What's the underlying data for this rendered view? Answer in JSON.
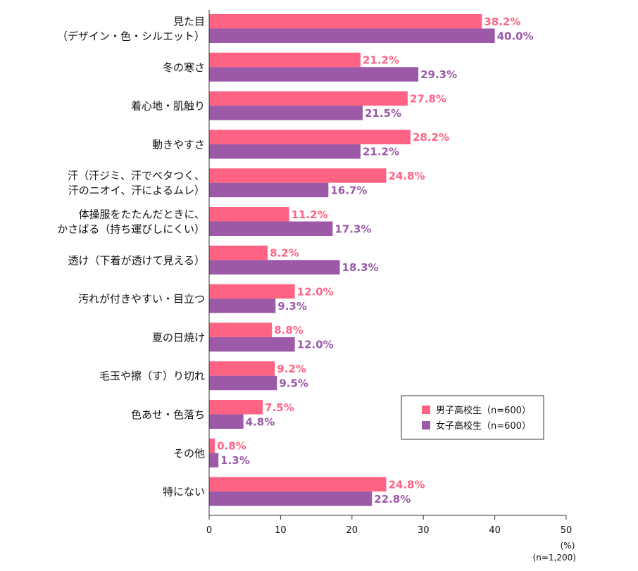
{
  "chart_data": {
    "type": "bar",
    "orientation": "horizontal",
    "categories": [
      [
        "見た目",
        "（デザイン・色・シルエット）"
      ],
      [
        "冬の寒さ"
      ],
      [
        "着心地・肌触り"
      ],
      [
        "動きやすさ"
      ],
      [
        "汗（汗ジミ、汗でベタつく、",
        "汗のニオイ、汗によるムレ）"
      ],
      [
        "体操服をたたんだときに、",
        "かさばる（持ち運びしにくい）"
      ],
      [
        "透け（下着が透けて見える）"
      ],
      [
        "汚れが付きやすい・目立つ"
      ],
      [
        "夏の日焼け"
      ],
      [
        "毛玉や擦（す）り切れ"
      ],
      [
        "色あせ・色落ち"
      ],
      [
        "その他"
      ],
      [
        "特にない"
      ]
    ],
    "series": [
      {
        "name": "男子高校生（n=600）",
        "color": "#ff6384",
        "values": [
          38.2,
          21.2,
          27.8,
          28.2,
          24.8,
          11.2,
          8.2,
          12.0,
          8.8,
          9.2,
          7.5,
          0.8,
          24.8
        ],
        "labels": [
          "38.2%",
          "21.2%",
          "27.8%",
          "28.2%",
          "24.8%",
          "11.2%",
          "8.2%",
          "12.0%",
          "8.8%",
          "9.2%",
          "7.5%",
          "0.8%",
          "24.8%"
        ]
      },
      {
        "name": "女子高校生（n=600）",
        "color": "#9b59a8",
        "values": [
          40.0,
          29.3,
          21.5,
          21.2,
          16.7,
          17.3,
          18.3,
          9.3,
          12.0,
          9.5,
          4.8,
          1.3,
          22.8
        ],
        "labels": [
          "40.0%",
          "29.3%",
          "21.5%",
          "21.2%",
          "16.7%",
          "17.3%",
          "18.3%",
          "9.3%",
          "12.0%",
          "9.5%",
          "4.8%",
          "1.3%",
          "22.8%"
        ]
      }
    ],
    "xlim": [
      0,
      50
    ],
    "xticks": [
      "0",
      "10",
      "20",
      "30",
      "40",
      "50"
    ],
    "unit_label": "(%)",
    "sample_note": "(n=1,200)",
    "legend_position": "bottom-right",
    "grid": false
  }
}
